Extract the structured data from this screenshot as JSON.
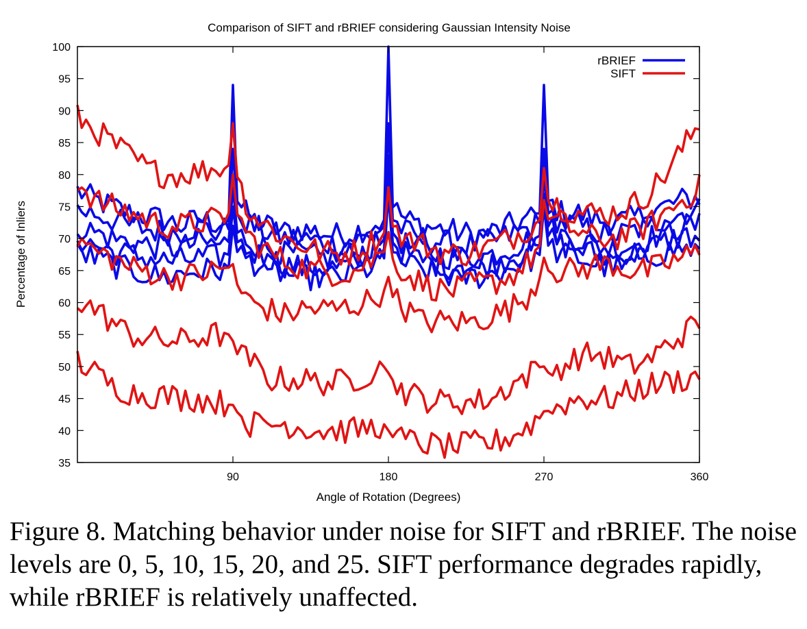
{
  "chart_data": {
    "type": "line",
    "title": "Comparison of SIFT and rBRIEF considering Gaussian Intensity Noise",
    "xlabel": "Angle of Rotation (Degrees)",
    "ylabel": "Percentage of Inliers",
    "xlim": [
      0,
      360
    ],
    "ylim": [
      35,
      100
    ],
    "xticks": [
      90,
      180,
      270,
      360
    ],
    "yticks": [
      35,
      40,
      45,
      50,
      55,
      60,
      65,
      70,
      75,
      80,
      85,
      90,
      95,
      100
    ],
    "legend_position": "top-right",
    "legend": [
      {
        "label": "rBRIEF",
        "color": "#0a0ae6"
      },
      {
        "label": "SIFT",
        "color": "#e01414"
      }
    ],
    "series": [
      {
        "group": "rBRIEF",
        "color": "#0a0ae6",
        "x": [
          0,
          10,
          20,
          30,
          40,
          50,
          60,
          70,
          80,
          88,
          90,
          92,
          100,
          110,
          120,
          130,
          140,
          150,
          160,
          170,
          178,
          180,
          182,
          190,
          200,
          210,
          220,
          230,
          240,
          250,
          260,
          268,
          270,
          272,
          280,
          290,
          300,
          310,
          320,
          330,
          340,
          350,
          360
        ],
        "values": [
          77.5,
          76,
          75,
          74,
          73.5,
          73,
          72,
          73,
          72.5,
          73,
          94,
          76,
          73,
          72,
          71,
          71.5,
          71,
          70.5,
          71,
          72,
          73,
          100,
          75,
          73,
          72,
          71.5,
          71,
          70.5,
          71,
          72,
          73,
          74,
          94,
          76,
          74,
          74,
          73,
          72.5,
          73,
          74,
          75,
          76,
          76.5
        ]
      },
      {
        "group": "rBRIEF",
        "color": "#0a0ae6",
        "x": [
          0,
          10,
          20,
          30,
          40,
          50,
          60,
          70,
          80,
          88,
          90,
          92,
          100,
          110,
          120,
          130,
          140,
          150,
          160,
          170,
          178,
          180,
          182,
          190,
          200,
          210,
          220,
          230,
          240,
          250,
          260,
          268,
          270,
          272,
          280,
          290,
          300,
          310,
          320,
          330,
          340,
          350,
          360
        ],
        "values": [
          74.5,
          74,
          73,
          72,
          71.5,
          71,
          71,
          72,
          71,
          71.5,
          84,
          74,
          72,
          71,
          70,
          70,
          69.5,
          69,
          69.5,
          70.5,
          72,
          88,
          73,
          71,
          70,
          69.5,
          69,
          69,
          69.5,
          70.5,
          71.5,
          72.5,
          84,
          74,
          72.5,
          72,
          71,
          70.5,
          71,
          72,
          73,
          74,
          74.5
        ]
      },
      {
        "group": "rBRIEF",
        "color": "#0a0ae6",
        "x": [
          0,
          10,
          20,
          30,
          40,
          50,
          60,
          70,
          80,
          88,
          90,
          92,
          100,
          110,
          120,
          130,
          140,
          150,
          160,
          170,
          178,
          180,
          182,
          190,
          200,
          210,
          220,
          230,
          240,
          250,
          260,
          268,
          270,
          272,
          280,
          290,
          300,
          310,
          320,
          330,
          340,
          350,
          360
        ],
        "values": [
          72,
          71,
          70,
          69.5,
          69,
          68.5,
          68.5,
          69.5,
          69,
          69.5,
          78,
          71,
          69.5,
          68.5,
          67.5,
          67.5,
          67,
          67,
          67.5,
          68.5,
          70,
          83,
          71,
          69,
          68,
          67.5,
          67,
          67,
          67.5,
          68.5,
          69.5,
          70.5,
          80,
          72,
          70.5,
          70,
          69,
          68.5,
          69,
          70,
          71,
          72,
          72
        ]
      },
      {
        "group": "rBRIEF",
        "color": "#0a0ae6",
        "x": [
          0,
          10,
          20,
          30,
          40,
          50,
          60,
          70,
          80,
          88,
          90,
          92,
          100,
          110,
          120,
          130,
          140,
          150,
          160,
          170,
          178,
          180,
          182,
          190,
          200,
          210,
          220,
          230,
          240,
          250,
          260,
          268,
          270,
          272,
          280,
          290,
          300,
          310,
          320,
          330,
          340,
          350,
          360
        ],
        "values": [
          70,
          69,
          68,
          67.5,
          67,
          66.5,
          66.5,
          67,
          67,
          67.5,
          75,
          69.5,
          68,
          67,
          66,
          65.5,
          65.5,
          65.5,
          66,
          67,
          68.5,
          80,
          69.5,
          67.5,
          66.5,
          66,
          65.5,
          65.5,
          66,
          67,
          68,
          69,
          77,
          70.5,
          69,
          68.5,
          67.5,
          67,
          67.5,
          68.5,
          69.5,
          70.5,
          70
        ]
      },
      {
        "group": "rBRIEF",
        "color": "#0a0ae6",
        "x": [
          0,
          10,
          20,
          30,
          40,
          50,
          60,
          70,
          80,
          88,
          90,
          92,
          100,
          110,
          120,
          130,
          140,
          150,
          160,
          170,
          178,
          180,
          182,
          190,
          200,
          210,
          220,
          230,
          240,
          250,
          260,
          268,
          270,
          272,
          280,
          290,
          300,
          310,
          320,
          330,
          340,
          350,
          360
        ],
        "values": [
          68,
          67,
          66,
          65,
          64.5,
          64,
          64.5,
          65,
          65,
          65.5,
          72,
          68,
          66.5,
          65.5,
          64.5,
          64,
          64,
          64,
          64.5,
          65.5,
          67,
          77,
          68,
          66,
          65,
          64.5,
          64,
          64,
          64.5,
          65.5,
          66.5,
          67.5,
          75,
          69,
          67.5,
          67,
          66,
          65.5,
          66,
          67,
          68,
          68.5,
          68
        ]
      },
      {
        "group": "SIFT",
        "color": "#e01414",
        "x": [
          0,
          10,
          20,
          30,
          40,
          50,
          60,
          70,
          80,
          88,
          90,
          92,
          100,
          110,
          120,
          130,
          140,
          150,
          160,
          170,
          178,
          180,
          182,
          190,
          200,
          210,
          220,
          230,
          240,
          250,
          260,
          268,
          270,
          272,
          280,
          290,
          300,
          310,
          320,
          330,
          340,
          350,
          360
        ],
        "values": [
          89,
          87,
          85,
          83,
          81,
          80,
          80,
          80.5,
          81,
          81.5,
          88,
          80,
          74,
          72,
          70,
          69,
          68,
          67.5,
          68,
          69.5,
          71,
          78,
          72,
          70,
          69,
          68,
          67.5,
          68,
          69,
          70,
          71.5,
          73,
          81,
          76,
          75,
          74,
          74,
          74,
          75,
          77,
          80,
          84,
          88
        ]
      },
      {
        "group": "SIFT",
        "color": "#e01414",
        "x": [
          0,
          10,
          20,
          30,
          40,
          50,
          60,
          70,
          80,
          88,
          90,
          92,
          100,
          110,
          120,
          130,
          140,
          150,
          160,
          170,
          178,
          180,
          182,
          190,
          200,
          210,
          220,
          230,
          240,
          250,
          260,
          268,
          270,
          272,
          280,
          290,
          300,
          310,
          320,
          330,
          340,
          350,
          360
        ],
        "values": [
          79,
          76,
          75,
          74,
          73,
          72,
          72,
          72.5,
          73,
          74,
          80,
          74,
          70,
          68,
          66.5,
          65.5,
          65,
          64.5,
          65,
          66.5,
          68,
          71,
          67,
          64.5,
          63,
          62,
          62,
          63,
          63,
          64,
          66,
          69,
          76,
          73,
          72.5,
          71,
          70,
          70,
          71,
          72,
          74,
          76,
          78
        ]
      },
      {
        "group": "SIFT",
        "color": "#e01414",
        "x": [
          0,
          10,
          20,
          30,
          40,
          50,
          60,
          70,
          80,
          88,
          90,
          92,
          100,
          110,
          120,
          130,
          140,
          150,
          160,
          170,
          178,
          180,
          182,
          190,
          200,
          210,
          220,
          230,
          240,
          250,
          260,
          268,
          270,
          272,
          280,
          290,
          300,
          310,
          320,
          330,
          340,
          350,
          360
        ],
        "values": [
          70,
          68,
          67,
          65.5,
          65,
          64,
          64,
          64.5,
          65,
          65.5,
          66,
          63,
          60,
          59,
          58,
          59,
          59,
          59,
          59.5,
          60.5,
          62,
          64,
          61,
          59,
          57,
          57,
          57,
          57,
          58,
          59,
          61,
          64,
          67,
          65,
          65,
          65,
          66,
          66,
          65,
          65,
          66,
          67,
          68
        ]
      },
      {
        "group": "SIFT",
        "color": "#e01414",
        "x": [
          0,
          10,
          20,
          30,
          40,
          50,
          60,
          70,
          80,
          88,
          90,
          92,
          100,
          110,
          120,
          130,
          140,
          150,
          160,
          170,
          178,
          180,
          182,
          190,
          200,
          210,
          220,
          230,
          240,
          250,
          260,
          268,
          270,
          272,
          280,
          290,
          300,
          310,
          320,
          330,
          340,
          350,
          360
        ],
        "values": [
          60.5,
          59,
          57,
          55,
          54.5,
          54,
          54,
          54.5,
          55,
          55,
          54,
          52,
          51,
          48,
          48,
          48,
          47.5,
          47.5,
          48,
          49,
          50,
          49,
          48,
          46,
          45,
          44.5,
          44.5,
          44.5,
          45,
          47,
          48.5,
          50,
          50,
          49,
          50,
          51.5,
          52,
          51,
          50,
          51,
          53,
          55,
          57
        ]
      },
      {
        "group": "SIFT",
        "color": "#e01414",
        "x": [
          0,
          10,
          20,
          30,
          40,
          50,
          60,
          70,
          80,
          88,
          90,
          92,
          100,
          110,
          120,
          130,
          140,
          150,
          160,
          170,
          178,
          180,
          182,
          190,
          200,
          210,
          220,
          230,
          240,
          250,
          260,
          268,
          270,
          272,
          280,
          290,
          300,
          310,
          320,
          330,
          340,
          350,
          360
        ],
        "values": [
          51,
          49,
          47,
          46,
          45.5,
          45.5,
          45,
          45,
          44.5,
          44,
          44,
          43,
          41,
          41,
          41,
          40.5,
          40,
          40,
          40,
          40.5,
          41,
          40,
          39,
          38.5,
          38,
          37.5,
          37.5,
          38,
          38,
          39,
          40.5,
          42,
          43,
          43,
          44,
          45,
          45,
          45,
          46,
          47,
          47.5,
          48,
          48.5
        ]
      }
    ]
  },
  "caption": "Figure 8. Matching behavior under noise for SIFT and rBRIEF. The noise levels are 0, 5, 10, 15, 20, and 25. SIFT performance degrades rapidly, while rBRIEF is relatively unaffected."
}
